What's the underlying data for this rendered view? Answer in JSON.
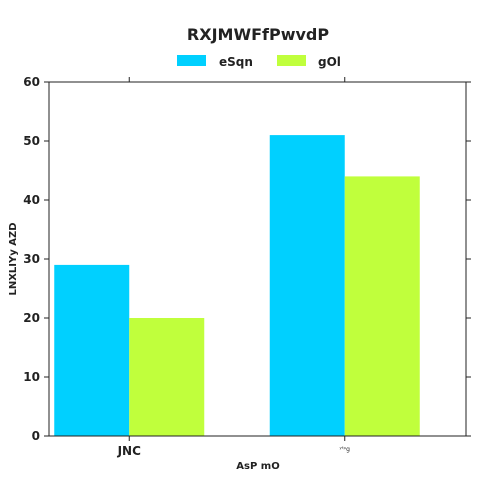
{
  "chart_data": {
    "type": "bar",
    "title": "RXJMWFfPwvdP",
    "xlabel": "AsP mO",
    "ylabel": "LNXLIYy AZD",
    "categories": [
      "JNC",
      "ʸᶠᵖg"
    ],
    "series": [
      {
        "name": "eSqn",
        "color": "#00d0ff",
        "values": [
          29,
          51
        ]
      },
      {
        "name": "gOl",
        "color": "#c0ff3c",
        "values": [
          20,
          44
        ]
      }
    ],
    "ylim": [
      0,
      60
    ],
    "yticks": [
      0,
      10,
      20,
      30,
      40,
      50,
      60
    ],
    "grid": false,
    "legend_position": "top-center"
  }
}
